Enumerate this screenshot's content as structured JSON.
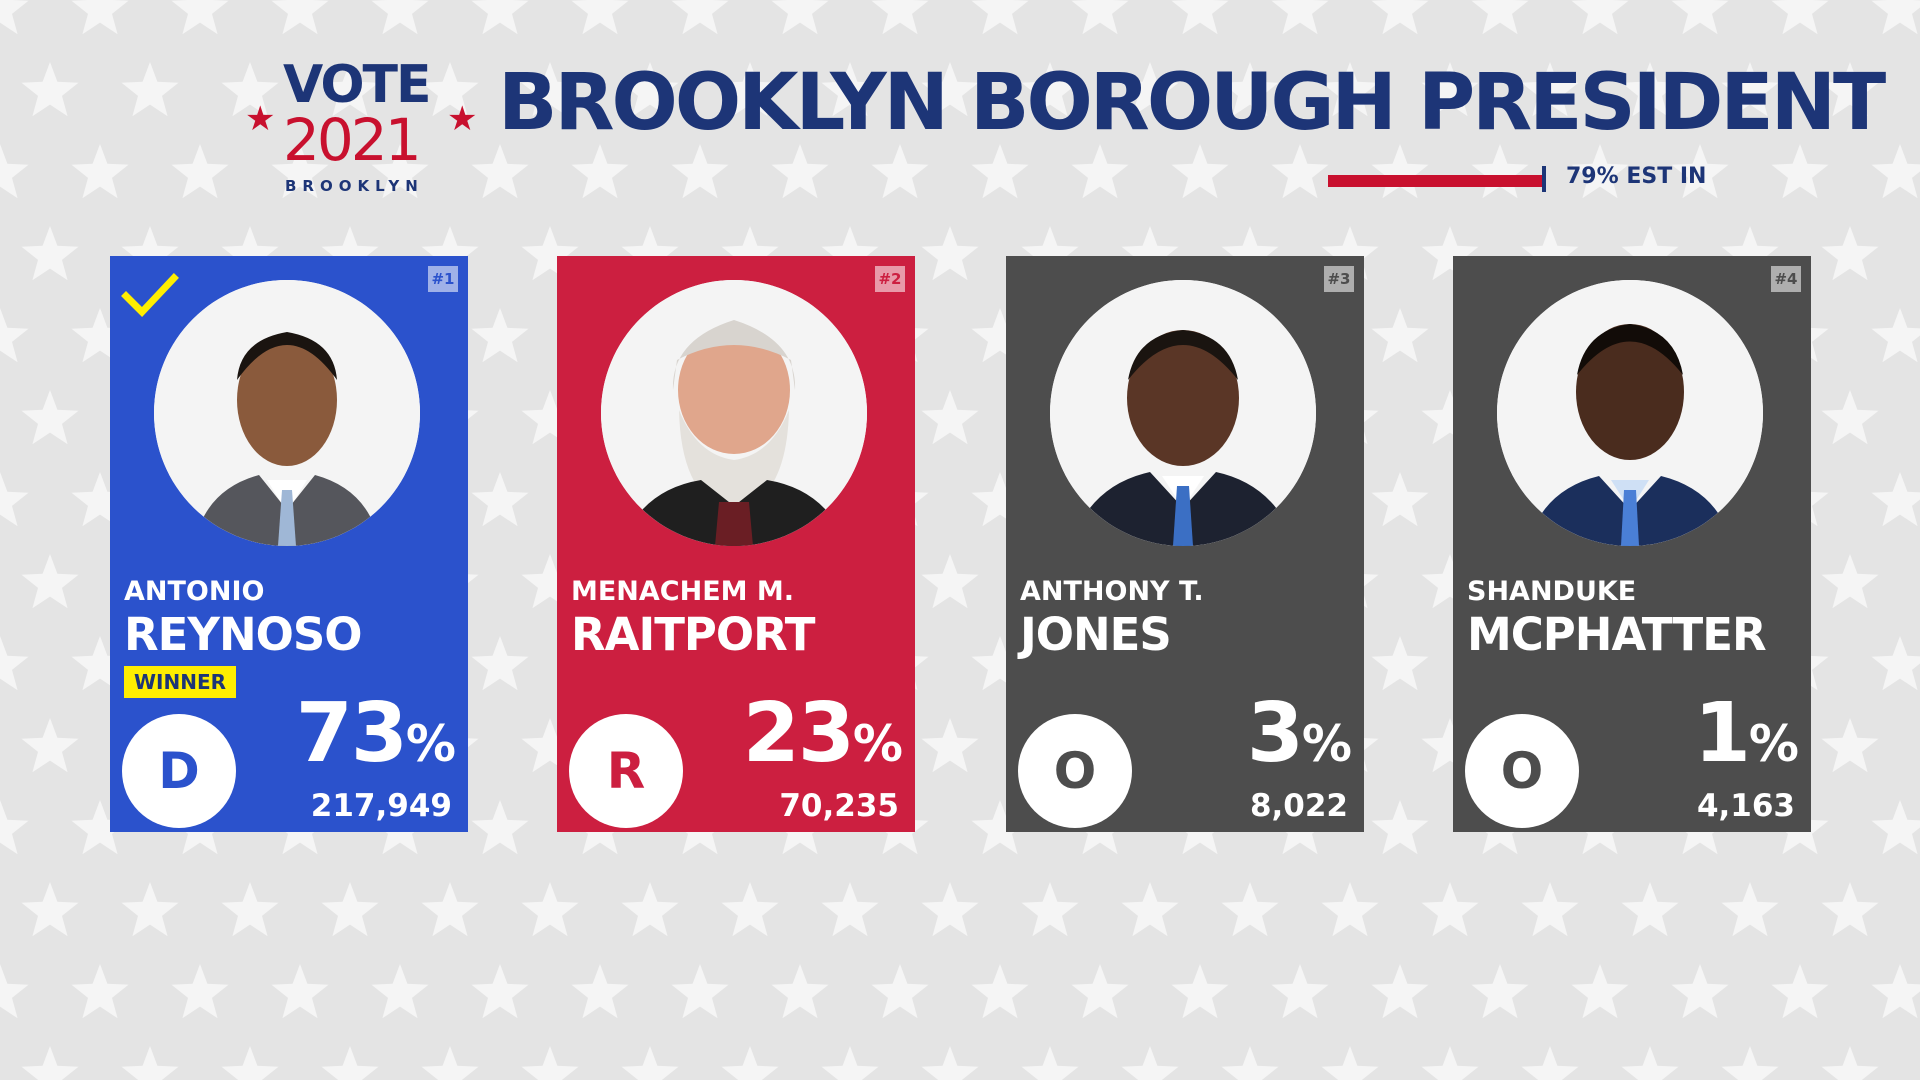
{
  "logo": {
    "line1": "VOTE",
    "line2": "2021",
    "line3": "BROOKLYN"
  },
  "title": "BROOKLYN BOROUGH PRESIDENT",
  "reporting": {
    "label": "79% EST IN",
    "fraction": 0.79
  },
  "colors": {
    "navy": "#1d3577",
    "red": "#c8102e",
    "dem_blue": "#2b52cc",
    "rep_red": "#cc1f40",
    "other_gray": "#4d4d4d",
    "winner_yellow": "#ffee00"
  },
  "candidates": [
    {
      "rank": "#1",
      "first": "ANTONIO",
      "last": "REYNOSO",
      "party": "D",
      "pct": "73",
      "pct_sign": "%",
      "votes": "217,949",
      "winner_label": "WINNER",
      "is_winner": true,
      "color": "#2b52cc",
      "icon": "checkmark-icon"
    },
    {
      "rank": "#2",
      "first": "MENACHEM M.",
      "last": "RAITPORT",
      "party": "R",
      "pct": "23",
      "pct_sign": "%",
      "votes": "70,235",
      "color": "#cc1f40"
    },
    {
      "rank": "#3",
      "first": "ANTHONY T.",
      "last": "JONES",
      "party": "O",
      "pct": "3",
      "pct_sign": "%",
      "votes": "8,022",
      "color": "#4d4d4d"
    },
    {
      "rank": "#4",
      "first": "SHANDUKE",
      "last": "MCPHATTER",
      "party": "O",
      "pct": "1",
      "pct_sign": "%",
      "votes": "4,163",
      "color": "#4d4d4d"
    }
  ]
}
